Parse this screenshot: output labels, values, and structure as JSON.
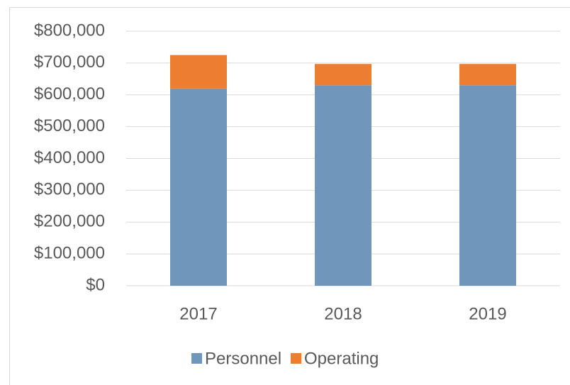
{
  "chart_data": {
    "type": "stacked_bar",
    "categories": [
      "2017",
      "2018",
      "2019"
    ],
    "series": [
      {
        "name": "Personnel",
        "color": "#7097bb",
        "values": [
          620000,
          630000,
          630000
        ]
      },
      {
        "name": "Operating",
        "color": "#ed7d31",
        "values": [
          105000,
          67000,
          67000
        ]
      }
    ],
    "ylim": [
      0,
      800000
    ],
    "yticks": [
      {
        "value": 0,
        "label": "$0"
      },
      {
        "value": 100000,
        "label": "$100,000"
      },
      {
        "value": 200000,
        "label": "$200,000"
      },
      {
        "value": 300000,
        "label": "$300,000"
      },
      {
        "value": 400000,
        "label": "$400,000"
      },
      {
        "value": 500000,
        "label": "$500,000"
      },
      {
        "value": 600000,
        "label": "$600,000"
      },
      {
        "value": 700000,
        "label": "$700,000"
      },
      {
        "value": 800000,
        "label": "$800,000"
      }
    ],
    "grid": true,
    "legend": "bottom"
  }
}
